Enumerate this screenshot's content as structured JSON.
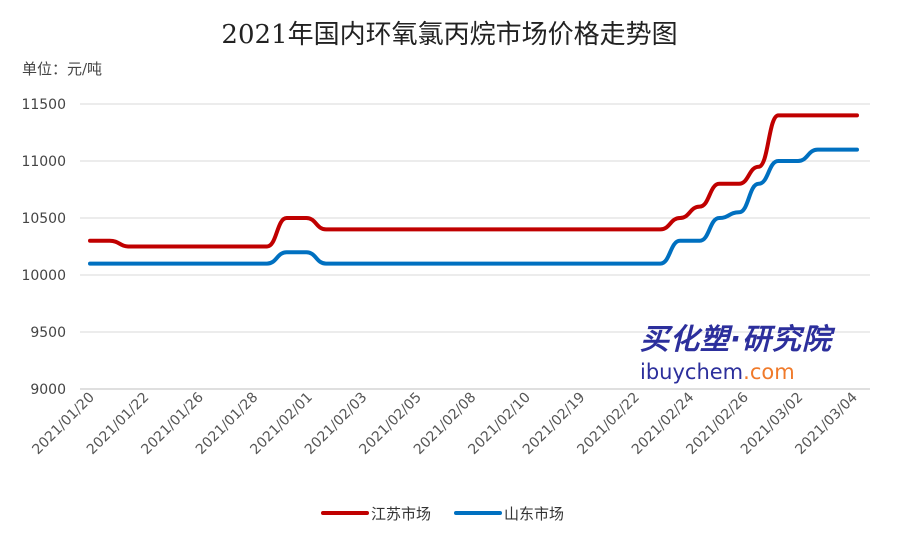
{
  "title": "2021年国内环氧氯丙烷市场价格走势图",
  "unit_label": "单位：元/吨",
  "watermark": {
    "cn": "买化塑·研究院",
    "en_main": "ibuychem",
    "en_suffix": ".com"
  },
  "colors": {
    "jiangsu": "#c00000",
    "shandong": "#0070c0",
    "grid": "#d9d9d9",
    "axis": "#bfbfbf"
  },
  "chart_data": {
    "type": "line",
    "title": "2021年国内环氧氯丙烷市场价格走势图",
    "ylabel": "单位：元/吨",
    "ylim": [
      9000,
      11500
    ],
    "yticks": [
      9000,
      9500,
      10000,
      10500,
      11000,
      11500
    ],
    "grid": true,
    "legend_position": "bottom",
    "x_tick_labels": [
      "2021/01/20",
      "2021/01/22",
      "2021/01/26",
      "2021/01/28",
      "2021/02/01",
      "2021/02/03",
      "2021/02/05",
      "2021/02/08",
      "2021/02/10",
      "2021/02/19",
      "2021/02/22",
      "2021/02/24",
      "2021/02/26",
      "2021/03/02",
      "2021/03/04"
    ],
    "series": [
      {
        "name": "江苏市场",
        "color": "#c00000",
        "values": [
          10300,
          10300,
          10250,
          10250,
          10250,
          10250,
          10250,
          10250,
          10250,
          10250,
          10500,
          10500,
          10400,
          10400,
          10400,
          10400,
          10400,
          10400,
          10400,
          10400,
          10400,
          10400,
          10400,
          10400,
          10400,
          10400,
          10400,
          10400,
          10400,
          10400,
          10500,
          10600,
          10800,
          10800,
          10950,
          11400,
          11400,
          11400,
          11400,
          11400
        ]
      },
      {
        "name": "山东市场",
        "color": "#0070c0",
        "values": [
          10100,
          10100,
          10100,
          10100,
          10100,
          10100,
          10100,
          10100,
          10100,
          10100,
          10200,
          10200,
          10100,
          10100,
          10100,
          10100,
          10100,
          10100,
          10100,
          10100,
          10100,
          10100,
          10100,
          10100,
          10100,
          10100,
          10100,
          10100,
          10100,
          10100,
          10300,
          10300,
          10500,
          10550,
          10800,
          11000,
          11000,
          11100,
          11100,
          11100
        ]
      }
    ]
  }
}
